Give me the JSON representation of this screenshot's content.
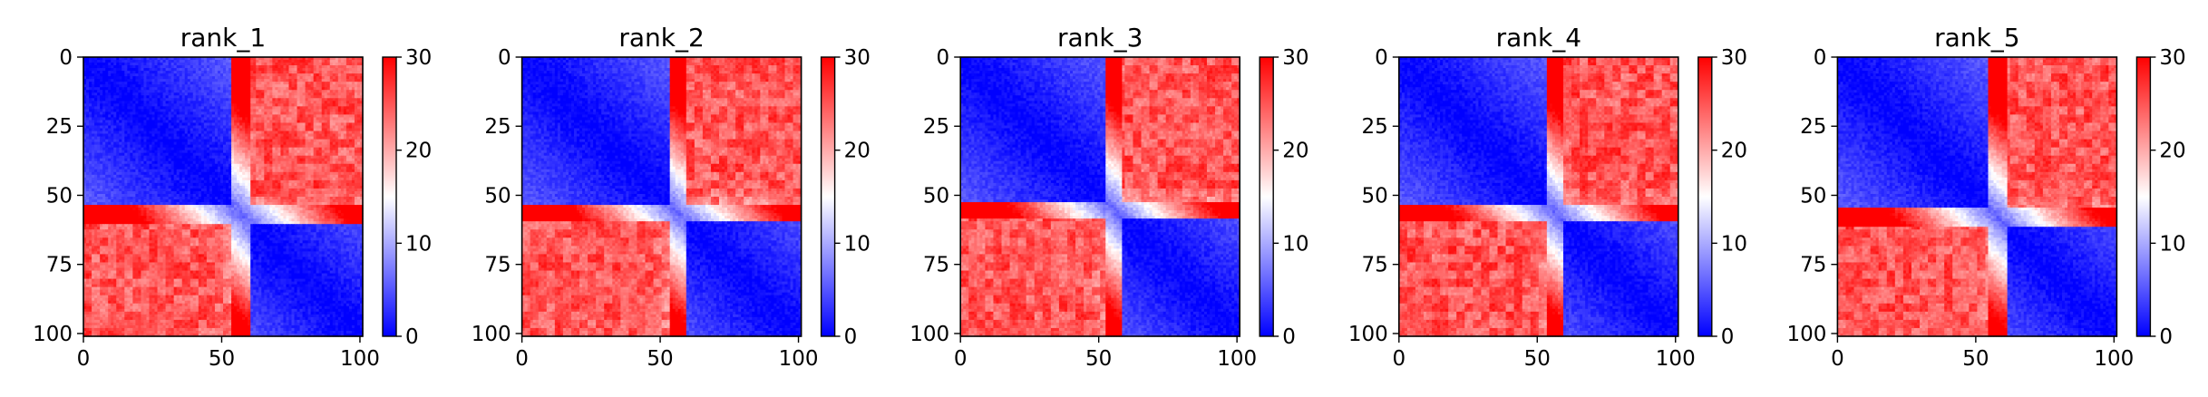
{
  "chart_data": [
    {
      "type": "heatmap",
      "title": "rank_1",
      "n": 102,
      "xlim": [
        0,
        101
      ],
      "ylim": [
        101,
        0
      ],
      "xticks": [
        0,
        50,
        100
      ],
      "yticks": [
        0,
        25,
        50,
        75,
        100
      ],
      "colorbar": {
        "min": 0,
        "max": 30,
        "ticks": [
          0,
          10,
          20,
          30
        ],
        "colormap": "bwr"
      },
      "domain_boundaries": [
        54,
        61
      ],
      "legend": "none"
    },
    {
      "type": "heatmap",
      "title": "rank_2",
      "n": 102,
      "xlim": [
        0,
        101
      ],
      "ylim": [
        101,
        0
      ],
      "xticks": [
        0,
        50,
        100
      ],
      "yticks": [
        0,
        25,
        50,
        75,
        100
      ],
      "colorbar": {
        "min": 0,
        "max": 30,
        "ticks": [
          0,
          10,
          20,
          30
        ],
        "colormap": "bwr"
      },
      "domain_boundaries": [
        54,
        60
      ],
      "legend": "none"
    },
    {
      "type": "heatmap",
      "title": "rank_3",
      "n": 102,
      "xlim": [
        0,
        101
      ],
      "ylim": [
        101,
        0
      ],
      "xticks": [
        0,
        50,
        100
      ],
      "yticks": [
        0,
        25,
        50,
        75,
        100
      ],
      "colorbar": {
        "min": 0,
        "max": 30,
        "ticks": [
          0,
          10,
          20,
          30
        ],
        "colormap": "bwr"
      },
      "domain_boundaries": [
        53,
        59
      ],
      "legend": "none"
    },
    {
      "type": "heatmap",
      "title": "rank_4",
      "n": 102,
      "xlim": [
        0,
        101
      ],
      "ylim": [
        101,
        0
      ],
      "xticks": [
        0,
        50,
        100
      ],
      "yticks": [
        0,
        25,
        50,
        75,
        100
      ],
      "colorbar": {
        "min": 0,
        "max": 30,
        "ticks": [
          0,
          10,
          20,
          30
        ],
        "colormap": "bwr"
      },
      "domain_boundaries": [
        54,
        60
      ],
      "legend": "none"
    },
    {
      "type": "heatmap",
      "title": "rank_5",
      "n": 102,
      "xlim": [
        0,
        101
      ],
      "ylim": [
        101,
        0
      ],
      "xticks": [
        0,
        50,
        100
      ],
      "yticks": [
        0,
        25,
        50,
        75,
        100
      ],
      "colorbar": {
        "min": 0,
        "max": 30,
        "ticks": [
          0,
          10,
          20,
          30
        ],
        "colormap": "bwr"
      },
      "domain_boundaries": [
        55,
        62
      ],
      "legend": "none"
    }
  ]
}
